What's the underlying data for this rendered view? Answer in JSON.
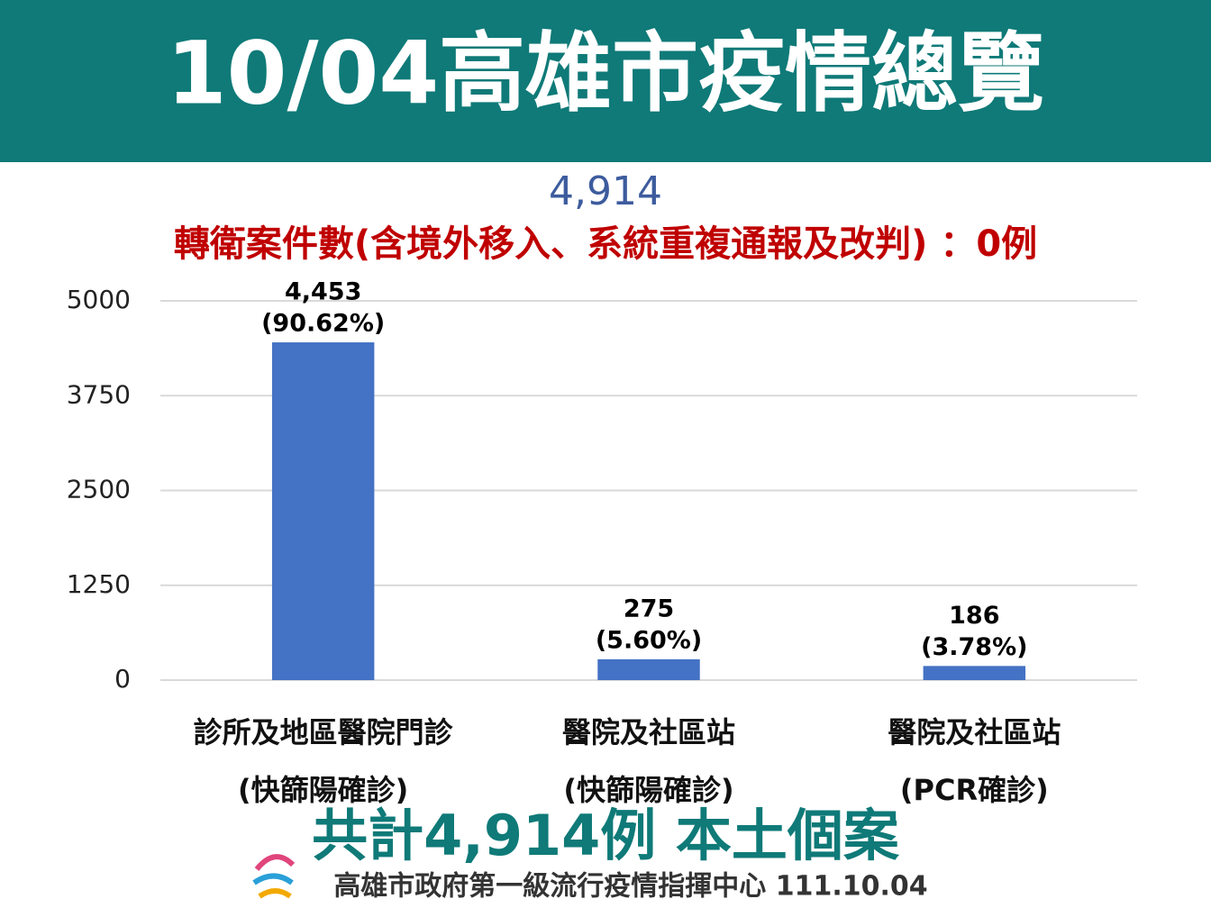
{
  "chart_data": {
    "type": "bar",
    "title": "10/04高雄市疫情總覽",
    "subtitle": "4,914",
    "annotation": "轉衛案件數(含境外移入、系統重複通報及改判) ：0例",
    "categories": [
      [
        "診所及地區醫院門診",
        "(快篩陽確診)"
      ],
      [
        "醫院及社區站",
        "(快篩陽確診)"
      ],
      [
        "醫院及社區站",
        "(PCR確診)"
      ]
    ],
    "values": [
      4453,
      275,
      186
    ],
    "value_labels": [
      [
        "4,453",
        "(90.62%)"
      ],
      [
        "275",
        "(5.60%)"
      ],
      [
        "186",
        "(3.78%)"
      ]
    ],
    "color": "#4472c4",
    "ylim": [
      0,
      5000
    ],
    "yticks": [
      0,
      1250,
      2500,
      3750,
      5000
    ],
    "grid": true,
    "total_note": "共計4,914例 本土個案",
    "footer": "高雄市政府第一級流行疫情指揮中心 111.10.04"
  }
}
